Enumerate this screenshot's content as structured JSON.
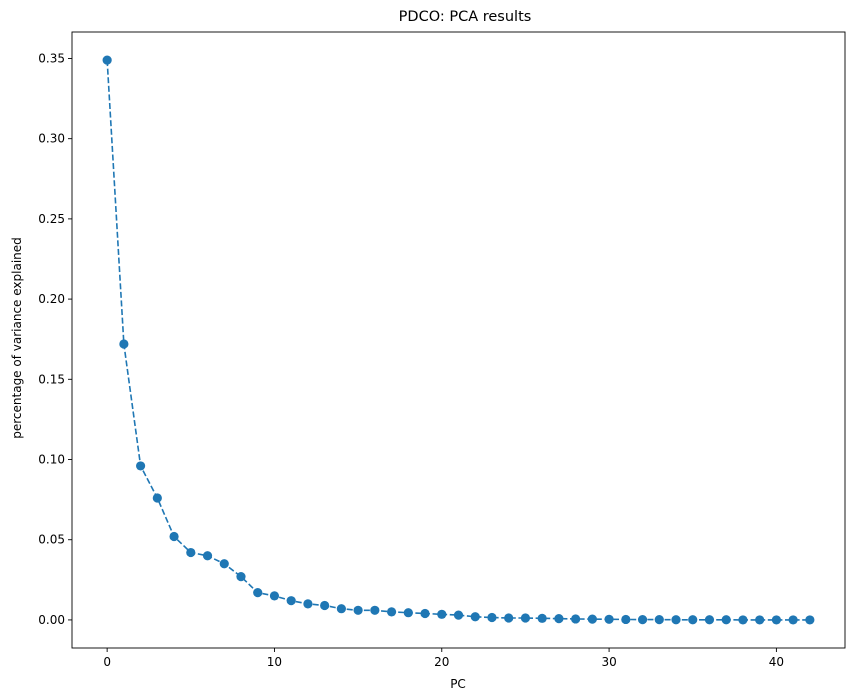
{
  "chart_data": {
    "type": "line",
    "title": "PDCO: PCA results",
    "xlabel": "PC",
    "ylabel": "percentage of variance explained",
    "xlim": [
      -2.1,
      44.1
    ],
    "ylim": [
      -0.0175,
      0.3665
    ],
    "xticks": [
      0,
      10,
      20,
      30,
      40
    ],
    "xtick_labels": [
      "0",
      "10",
      "20",
      "30",
      "40"
    ],
    "yticks": [
      0.0,
      0.05,
      0.1,
      0.15,
      0.2,
      0.25,
      0.3,
      0.35
    ],
    "ytick_labels": [
      "0.00",
      "0.05",
      "0.10",
      "0.15",
      "0.20",
      "0.25",
      "0.30",
      "0.35"
    ],
    "grid": false,
    "series": [
      {
        "color": "#1f77b4",
        "line_style": "dashed",
        "marker": "circle",
        "x": [
          0,
          1,
          2,
          3,
          4,
          5,
          6,
          7,
          8,
          9,
          10,
          11,
          12,
          13,
          14,
          15,
          16,
          17,
          18,
          19,
          20,
          21,
          22,
          23,
          24,
          25,
          26,
          27,
          28,
          29,
          30,
          31,
          32,
          33,
          34,
          35,
          36,
          37,
          38,
          39,
          40,
          41,
          42
        ],
        "values": [
          0.349,
          0.172,
          0.096,
          0.076,
          0.052,
          0.042,
          0.04,
          0.035,
          0.027,
          0.017,
          0.015,
          0.012,
          0.01,
          0.009,
          0.007,
          0.006,
          0.006,
          0.005,
          0.0045,
          0.004,
          0.0035,
          0.003,
          0.002,
          0.0015,
          0.0012,
          0.0012,
          0.001,
          0.0008,
          0.0006,
          0.0005,
          0.0004,
          0.0003,
          0.0002,
          0.0002,
          0.0001,
          0.0001,
          0.0001,
          0.0001,
          0.0,
          0.0,
          0.0,
          0.0,
          0.0
        ]
      }
    ]
  }
}
